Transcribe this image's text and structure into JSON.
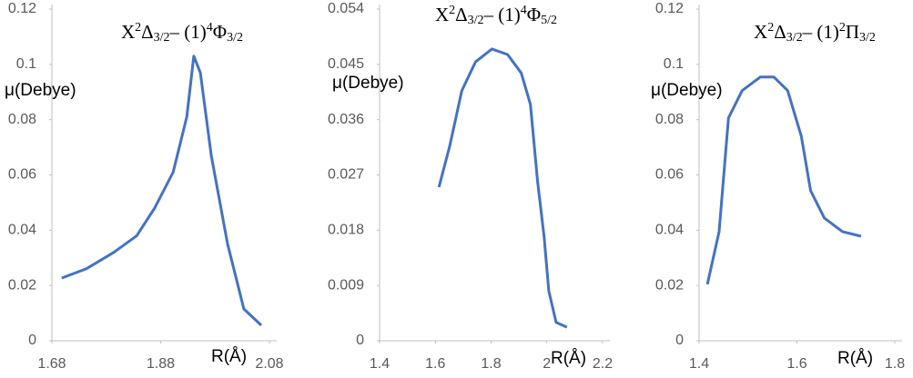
{
  "chart_data": [
    {
      "type": "line",
      "title_parts": [
        "X",
        "2",
        "Δ",
        "3/2",
        "– (1)",
        "4",
        "Φ",
        "3/2"
      ],
      "ylabel": "μ(Debye)",
      "xlabel": "R(Å)",
      "xlim": [
        1.68,
        2.08
      ],
      "xticks": [
        1.68,
        1.88,
        2.08
      ],
      "ylim": [
        0,
        0.12
      ],
      "yticks": [
        0,
        0.02,
        0.04,
        0.06,
        0.08,
        0.1,
        0.12
      ],
      "series": [
        {
          "color": "#4472c4",
          "x": [
            1.698,
            1.743,
            1.794,
            1.836,
            1.869,
            1.903,
            1.928,
            1.941,
            1.953,
            1.973,
            2.003,
            2.033,
            2.065
          ],
          "values": [
            0.0227,
            0.026,
            0.032,
            0.038,
            0.048,
            0.061,
            0.081,
            0.103,
            0.097,
            0.067,
            0.035,
            0.0115,
            0.0056
          ]
        }
      ]
    },
    {
      "type": "line",
      "title_parts": [
        "X",
        "2",
        "Δ",
        "3/2",
        "– (1)",
        "4",
        "Φ",
        "5/2"
      ],
      "ylabel": "μ(Debye)",
      "xlabel": "R(Å)",
      "xlim": [
        1.4,
        2.2
      ],
      "xticks": [
        1.4,
        1.6,
        1.8,
        2,
        2.2
      ],
      "ylim": [
        0,
        0.054
      ],
      "yticks": [
        0,
        0.009,
        0.018,
        0.027,
        0.036,
        0.045,
        0.054
      ],
      "series": [
        {
          "color": "#4472c4",
          "x": [
            1.613,
            1.652,
            1.695,
            1.744,
            1.803,
            1.859,
            1.908,
            1.941,
            1.967,
            1.99,
            2.007,
            2.033,
            2.072
          ],
          "values": [
            0.025,
            0.0318,
            0.0407,
            0.0454,
            0.0475,
            0.0466,
            0.0436,
            0.0385,
            0.0259,
            0.017,
            0.0081,
            0.003,
            0.0022
          ]
        }
      ]
    },
    {
      "type": "line",
      "title_parts": [
        "X",
        "2",
        "Δ",
        "3/2",
        "– (1)",
        "2",
        "Π",
        "3/2"
      ],
      "ylabel": "μ(Debye)",
      "xlabel": "R(Å)",
      "xlim": [
        1.4,
        1.8
      ],
      "xticks": [
        1.4,
        1.6,
        1.8
      ],
      "ylim": [
        0,
        0.12
      ],
      "yticks": [
        0,
        0.02,
        0.04,
        0.06,
        0.08,
        0.1,
        0.12
      ],
      "series": [
        {
          "color": "#4472c4",
          "x": [
            1.417,
            1.441,
            1.46,
            1.488,
            1.525,
            1.553,
            1.581,
            1.609,
            1.628,
            1.656,
            1.693,
            1.731
          ],
          "values": [
            0.0204,
            0.0395,
            0.0806,
            0.0905,
            0.0954,
            0.0954,
            0.0905,
            0.074,
            0.0543,
            0.0444,
            0.0395,
            0.0378
          ]
        }
      ]
    }
  ]
}
